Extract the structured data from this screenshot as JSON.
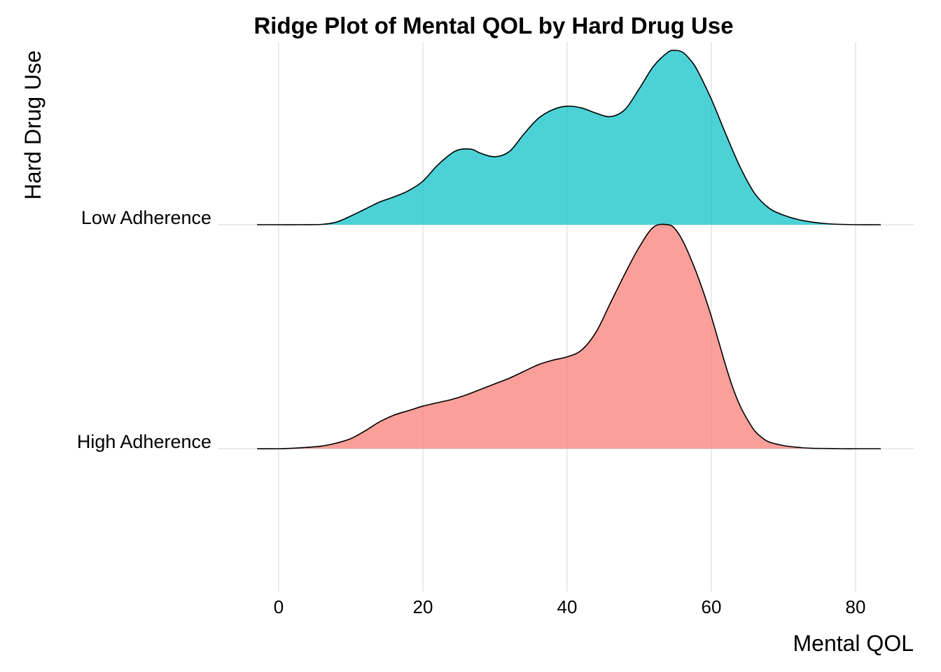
{
  "chart_data": {
    "type": "ridgeline",
    "title": "Ridge Plot of Mental QOL by Hard Drug Use",
    "xlabel": "Mental QOL",
    "ylabel": "Hard Drug Use",
    "xlim": [
      -3,
      88
    ],
    "xticks": [
      0,
      20,
      40,
      60,
      80
    ],
    "grid": true,
    "legend": "none",
    "series": [
      {
        "name": "High Adherence",
        "color": "#F8766D",
        "fill_opacity": 0.7,
        "x": [
          -3,
          0,
          3,
          6,
          8,
          10,
          12,
          14,
          16,
          18,
          20,
          22,
          24,
          26,
          28,
          30,
          32,
          34,
          36,
          38,
          40,
          42,
          44,
          46,
          48,
          50,
          52,
          54,
          55,
          56,
          57,
          58,
          59,
          60,
          61,
          62,
          63,
          64,
          65,
          66,
          67,
          68,
          70,
          72,
          74,
          76,
          78,
          80,
          83.5
        ],
        "density": [
          0,
          0,
          0.004,
          0.012,
          0.025,
          0.045,
          0.08,
          0.12,
          0.15,
          0.17,
          0.19,
          0.205,
          0.22,
          0.24,
          0.265,
          0.29,
          0.315,
          0.345,
          0.375,
          0.395,
          0.41,
          0.44,
          0.52,
          0.65,
          0.78,
          0.9,
          0.99,
          1.0,
          0.98,
          0.93,
          0.86,
          0.78,
          0.69,
          0.59,
          0.48,
          0.37,
          0.27,
          0.19,
          0.13,
          0.08,
          0.05,
          0.03,
          0.014,
          0.006,
          0.002,
          0.001,
          0,
          0,
          0
        ]
      },
      {
        "name": "Low Adherence",
        "color": "#00BFC4",
        "fill_opacity": 0.7,
        "x": [
          -3,
          0,
          3,
          6,
          8,
          10,
          12,
          14,
          16,
          18,
          20,
          22,
          24,
          25,
          26,
          27,
          28,
          30,
          32,
          34,
          36,
          38,
          40,
          42,
          44,
          46,
          48,
          50,
          52,
          54,
          55,
          56,
          57,
          58,
          60,
          62,
          64,
          66,
          68,
          70,
          72,
          74,
          76,
          78,
          80,
          83.5
        ],
        "density": [
          0,
          0,
          0,
          0.002,
          0.015,
          0.05,
          0.09,
          0.13,
          0.16,
          0.195,
          0.25,
          0.34,
          0.41,
          0.43,
          0.435,
          0.43,
          0.41,
          0.39,
          0.42,
          0.52,
          0.61,
          0.66,
          0.68,
          0.67,
          0.64,
          0.62,
          0.66,
          0.78,
          0.91,
          0.99,
          1.0,
          0.99,
          0.95,
          0.89,
          0.72,
          0.52,
          0.33,
          0.18,
          0.095,
          0.055,
          0.03,
          0.015,
          0.006,
          0.002,
          0,
          0
        ]
      }
    ]
  }
}
